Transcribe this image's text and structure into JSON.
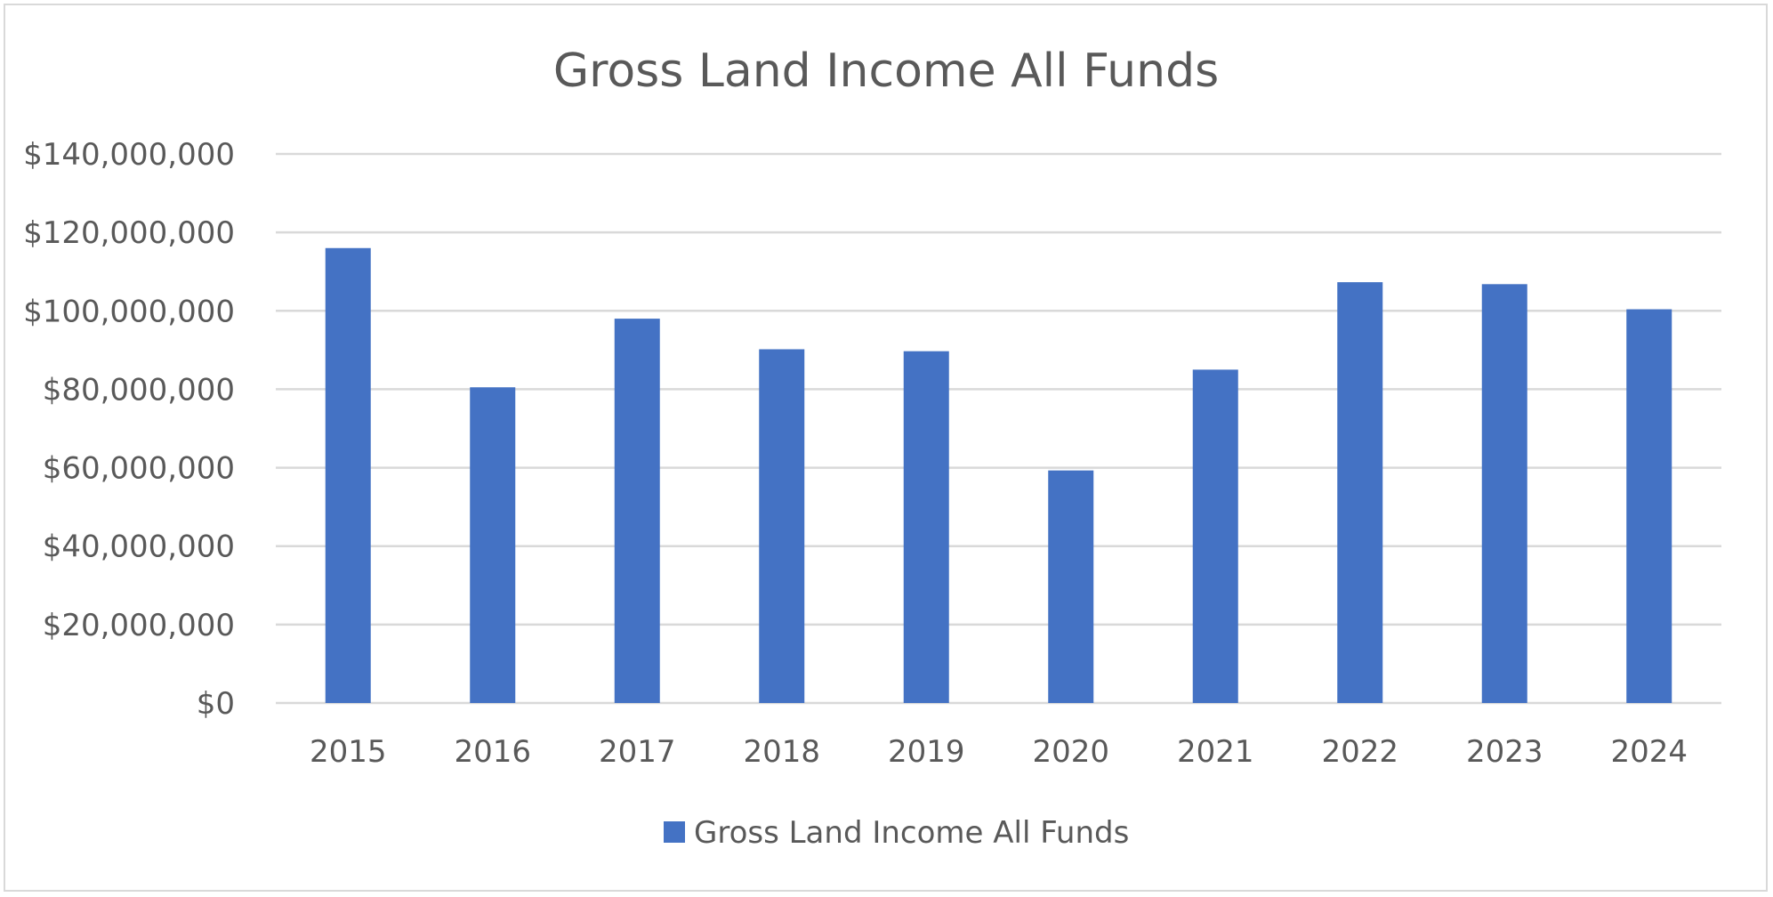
{
  "chart_data": {
    "type": "bar",
    "title": "Gross Land Income All Funds",
    "xlabel": "",
    "ylabel": "",
    "categories": [
      "2015",
      "2016",
      "2017",
      "2018",
      "2019",
      "2020",
      "2021",
      "2022",
      "2023",
      "2024"
    ],
    "series": [
      {
        "name": "Gross Land Income All Funds",
        "color": "#4472c4",
        "values": [
          116000000,
          80500000,
          98000000,
          90200000,
          89700000,
          59300000,
          85000000,
          107300000,
          106800000,
          100400000
        ]
      }
    ],
    "ylim": [
      0,
      140000000
    ],
    "y_ticks": [
      {
        "value": 0,
        "label": "$0"
      },
      {
        "value": 20000000,
        "label": "$20,000,000"
      },
      {
        "value": 40000000,
        "label": "$40,000,000"
      },
      {
        "value": 60000000,
        "label": "$60,000,000"
      },
      {
        "value": 80000000,
        "label": "$80,000,000"
      },
      {
        "value": 100000000,
        "label": "$100,000,000"
      },
      {
        "value": 120000000,
        "label": "$120,000,000"
      },
      {
        "value": 140000000,
        "label": "$140,000,000"
      }
    ],
    "grid": true,
    "gridline_color": "#d9d9d9",
    "legend_position": "bottom"
  }
}
